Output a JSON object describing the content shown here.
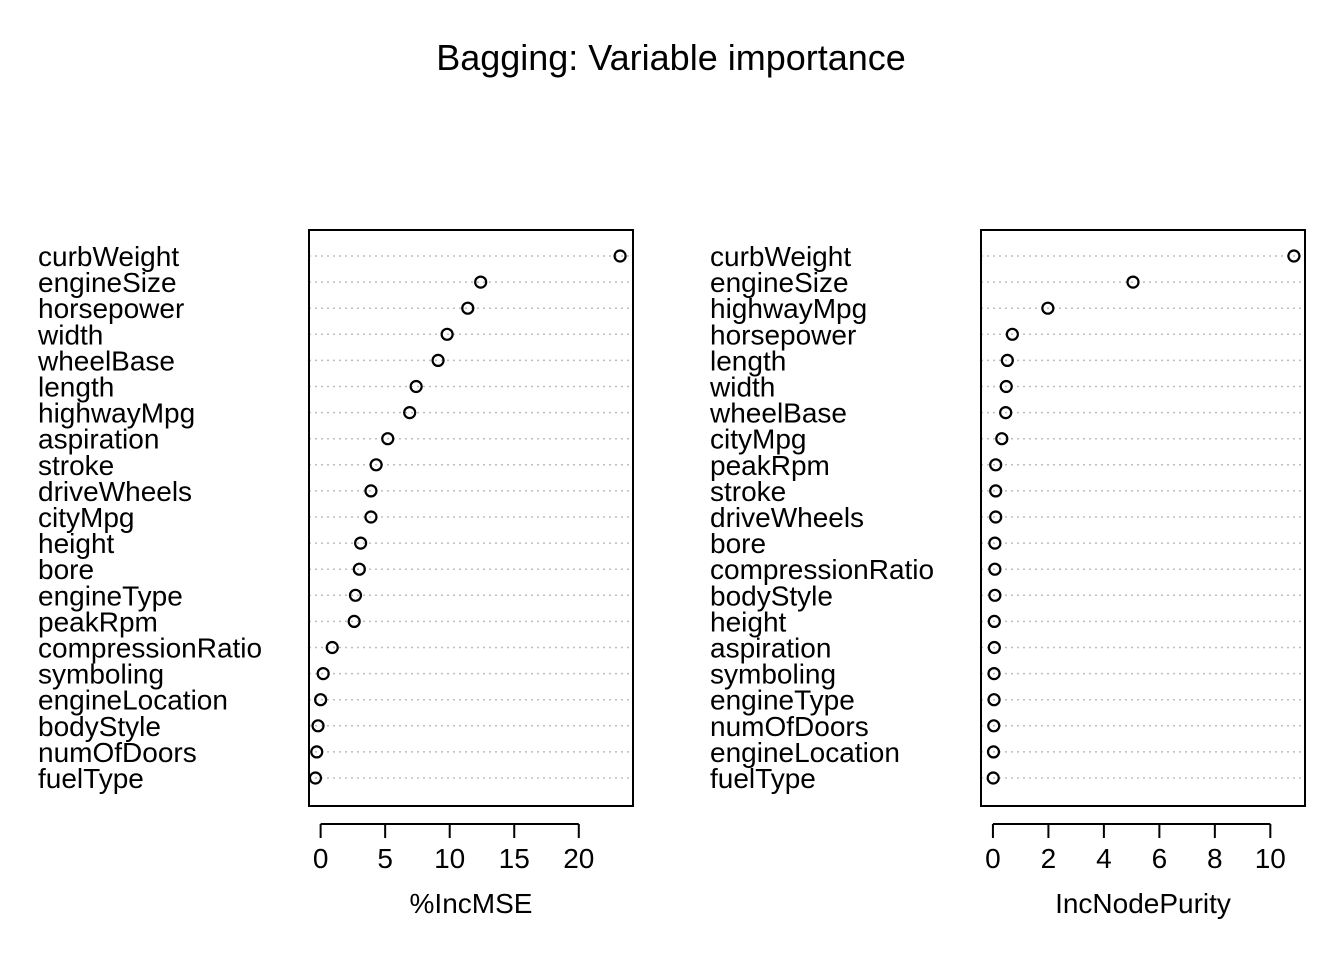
{
  "chart_data": {
    "type": "scatter",
    "title": "Bagging: Variable importance",
    "panels": [
      {
        "xlabel": "%IncMSE",
        "xticks": [
          0,
          5,
          10,
          15,
          20
        ],
        "xlim": [
          -0.9,
          24.2
        ],
        "categories": [
          "curbWeight",
          "engineSize",
          "horsepower",
          "width",
          "wheelBase",
          "length",
          "highwayMpg",
          "aspiration",
          "stroke",
          "driveWheels",
          "cityMpg",
          "height",
          "bore",
          "engineType",
          "peakRpm",
          "compressionRatio",
          "symboling",
          "engineLocation",
          "bodyStyle",
          "numOfDoors",
          "fuelType"
        ],
        "values": [
          23.2,
          12.4,
          11.4,
          9.8,
          9.1,
          7.4,
          6.9,
          5.2,
          4.3,
          3.9,
          3.9,
          3.1,
          3.0,
          2.7,
          2.6,
          0.9,
          0.2,
          0.0,
          -0.2,
          -0.3,
          -0.4
        ]
      },
      {
        "xlabel": "IncNodePurity",
        "xticks": [
          0,
          2,
          4,
          6,
          8,
          10
        ],
        "xlim": [
          -0.43,
          11.25
        ],
        "categories": [
          "curbWeight",
          "engineSize",
          "highwayMpg",
          "horsepower",
          "length",
          "width",
          "wheelBase",
          "cityMpg",
          "peakRpm",
          "stroke",
          "driveWheels",
          "bore",
          "compressionRatio",
          "bodyStyle",
          "height",
          "aspiration",
          "symboling",
          "engineType",
          "numOfDoors",
          "engineLocation",
          "fuelType"
        ],
        "values": [
          10.85,
          5.05,
          1.98,
          0.7,
          0.52,
          0.48,
          0.46,
          0.32,
          0.1,
          0.1,
          0.1,
          0.07,
          0.07,
          0.07,
          0.05,
          0.05,
          0.04,
          0.04,
          0.03,
          0.02,
          0.01
        ]
      }
    ]
  }
}
